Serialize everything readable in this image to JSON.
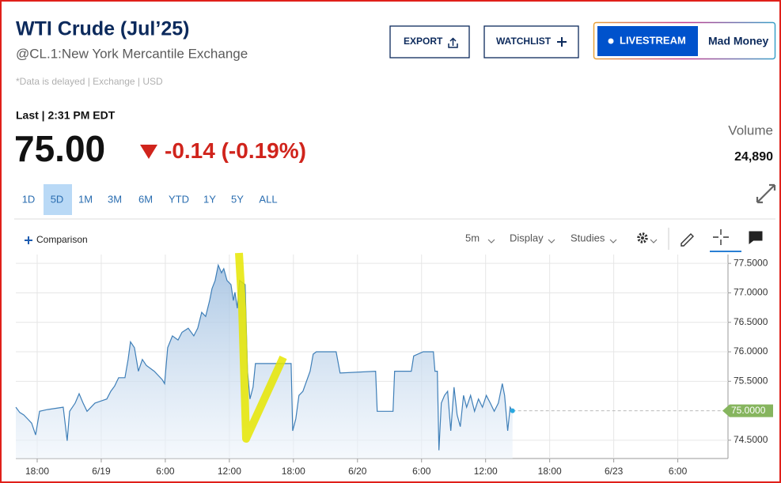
{
  "header": {
    "title": "WTI Crude (Jul’25)",
    "subtitle": "@CL.1:New York Mercantile Exchange",
    "note": "*Data is delayed | Exchange | USD",
    "buttons": {
      "export": "EXPORT",
      "watchlist": "WATCHLIST",
      "livestream": "LIVESTREAM",
      "show": "Mad Money"
    }
  },
  "quote": {
    "last_time": "Last | 2:31 PM EDT",
    "price": "75.00",
    "change": "-0.14",
    "change_pct": "(-0.19%)",
    "volume_label": "Volume",
    "volume": "24,890"
  },
  "ranges": [
    "1D",
    "5D",
    "1M",
    "3M",
    "6M",
    "YTD",
    "1Y",
    "5Y",
    "ALL"
  ],
  "toolbar": {
    "comparison": "Comparison",
    "interval": "5m",
    "display": "Display",
    "studies": "Studies"
  },
  "chart_data": {
    "type": "area",
    "color": "#3f7fb8",
    "grid": true,
    "x": [
      -2.0,
      -1.63,
      -1.26,
      -0.89,
      -0.52,
      -0.15,
      0.22,
      0.96,
      2.44,
      2.81,
      3.04,
      3.56,
      3.93,
      4.3,
      4.67,
      5.41,
      6.52,
      6.89,
      7.26,
      7.63,
      8.22,
      8.52,
      8.74,
      9.11,
      9.48,
      9.85,
      10.22,
      10.96,
      11.7,
      11.93,
      12.22,
      12.67,
      13.19,
      13.56,
      14.15,
      14.67,
      15.04,
      15.41,
      15.78,
      16.15,
      16.37,
      16.67,
      16.96,
      17.26,
      17.48,
      17.78,
      18.15,
      18.37,
      18.52,
      18.74,
      18.96,
      19.48,
      19.7,
      19.93,
      20.22,
      20.44,
      23.78,
      23.93,
      24.22,
      24.52,
      24.89,
      25.56,
      25.85,
      26.15,
      28.0,
      28.37,
      31.7,
      31.85,
      33.33,
      33.48,
      35.04,
      35.26,
      36.15,
      37.11,
      37.26,
      37.48,
      37.63,
      37.85,
      38.15,
      38.44,
      38.74,
      39.04,
      39.33,
      39.63,
      39.93,
      40.22,
      40.59,
      40.96,
      41.33,
      41.7,
      42.07,
      42.44,
      42.81,
      43.19,
      43.56,
      43.78,
      44.07,
      44.3,
      44.52
    ],
    "values": [
      75.06,
      74.97,
      74.93,
      74.86,
      74.79,
      74.59,
      74.99,
      75.02,
      75.06,
      74.49,
      74.99,
      75.13,
      75.29,
      75.13,
      74.99,
      75.13,
      75.2,
      75.33,
      75.42,
      75.56,
      75.56,
      75.87,
      76.17,
      76.07,
      75.67,
      75.87,
      75.77,
      75.67,
      75.53,
      75.46,
      76.07,
      76.27,
      76.2,
      76.33,
      76.4,
      76.27,
      76.4,
      76.67,
      76.6,
      76.87,
      77.07,
      77.21,
      77.47,
      77.34,
      77.41,
      77.21,
      77.14,
      76.87,
      77.01,
      76.74,
      77.21,
      77.14,
      75.67,
      75.2,
      75.4,
      75.8,
      75.8,
      74.66,
      74.86,
      75.26,
      75.33,
      75.67,
      75.96,
      76.0,
      76.0,
      75.64,
      75.67,
      74.99,
      74.99,
      75.67,
      75.67,
      75.93,
      76.0,
      76.0,
      75.67,
      75.67,
      74.33,
      75.13,
      75.26,
      75.33,
      74.66,
      75.4,
      74.93,
      74.73,
      75.26,
      75.06,
      75.26,
      74.99,
      75.2,
      75.06,
      75.26,
      75.13,
      74.99,
      75.13,
      75.46,
      75.26,
      74.66,
      75.06,
      74.99
    ],
    "xlim": [
      -2,
      64.7
    ],
    "ylim": [
      74.19,
      77.65
    ],
    "xticks": [
      {
        "value": 0,
        "label": "18:00"
      },
      {
        "value": 6,
        "label": "6/19"
      },
      {
        "value": 12,
        "label": "6:00"
      },
      {
        "value": 18,
        "label": "12:00"
      },
      {
        "value": 24,
        "label": "18:00"
      },
      {
        "value": 30,
        "label": "6/20"
      },
      {
        "value": 36,
        "label": "6:00"
      },
      {
        "value": 42,
        "label": "12:00"
      },
      {
        "value": 48,
        "label": "18:00"
      },
      {
        "value": 54,
        "label": "6/23"
      },
      {
        "value": 60,
        "label": "6:00"
      }
    ],
    "yticks": [
      {
        "value": 74.5,
        "label": "74.5000"
      },
      {
        "value": 75.5,
        "label": "75.5000"
      },
      {
        "value": 76,
        "label": "76.0000"
      },
      {
        "value": 76.5,
        "label": "76.5000"
      },
      {
        "value": 77,
        "label": "77.0000"
      },
      {
        "value": 77.5,
        "label": "77.5000"
      }
    ],
    "last_price": {
      "value": 75,
      "label": "75.0000"
    }
  }
}
